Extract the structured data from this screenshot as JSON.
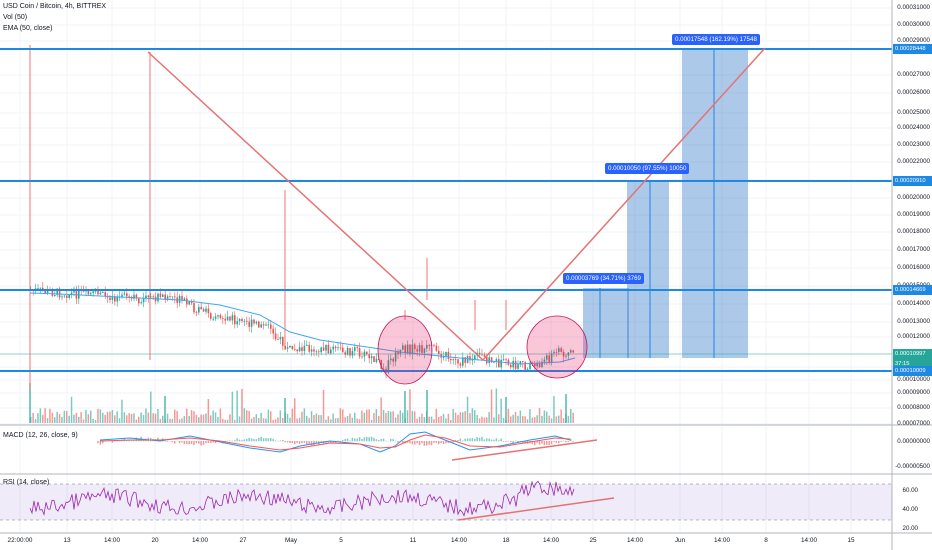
{
  "header": {
    "symbol": "USD Coin / Bitcoin, 4h, BITTREX",
    "volume": "Vol (50)",
    "ema": "EMA (50, close)",
    "macd": "MACD (12, 26, close, 9)",
    "rsi": "RSI (14, close)"
  },
  "price_axis": {
    "ticks": [
      "0.00031000",
      "0.00030000",
      "0.00029000",
      "0.00027000",
      "0.00026000",
      "0.00025000",
      "0.00024000",
      "0.00023000",
      "0.00022000",
      "0.00021000",
      "0.00020000",
      "0.00019000",
      "0.00018000",
      "0.00017000",
      "0.00016000",
      "0.00015000",
      "0.00014000",
      "0.00013000",
      "0.00012000",
      "0.00011000",
      "0.00010000",
      "0.00009000",
      "0.00008000",
      "0.00007000"
    ],
    "level_tags": [
      "0.00028448",
      "0.00020910",
      "0.00014669",
      "0.00010997",
      "37:15",
      "0.00010009"
    ]
  },
  "macd_axis": {
    "ticks": [
      "0.00000000",
      "-0.00000500"
    ]
  },
  "rsi_axis": {
    "ticks": [
      "60.00",
      "40.00",
      "20.00"
    ]
  },
  "time_axis": {
    "ticks": [
      "22:00:00",
      "13",
      "14:00",
      "20",
      "14:00",
      "27",
      "May",
      "5",
      "11",
      "14:00",
      "18",
      "14:00",
      "25",
      "14:00",
      "Jun",
      "14:00",
      "8",
      "14:00",
      "15"
    ]
  },
  "targets": [
    {
      "label": "0.00017548 (162.19%) 17548"
    },
    {
      "label": "0.00010050 (97.55%) 10050"
    },
    {
      "label": "0.00003769 (34.71%) 3769"
    }
  ],
  "colors": {
    "level_line": "#1e88e5",
    "trend_line": "#e57373",
    "target_box": "#1565c0",
    "rsi_band": "#7e57c2",
    "macd_line": "#2196f3",
    "signal_line": "#ff5252",
    "candle_up": "#26a69a",
    "candle_down": "#ef5350"
  }
}
